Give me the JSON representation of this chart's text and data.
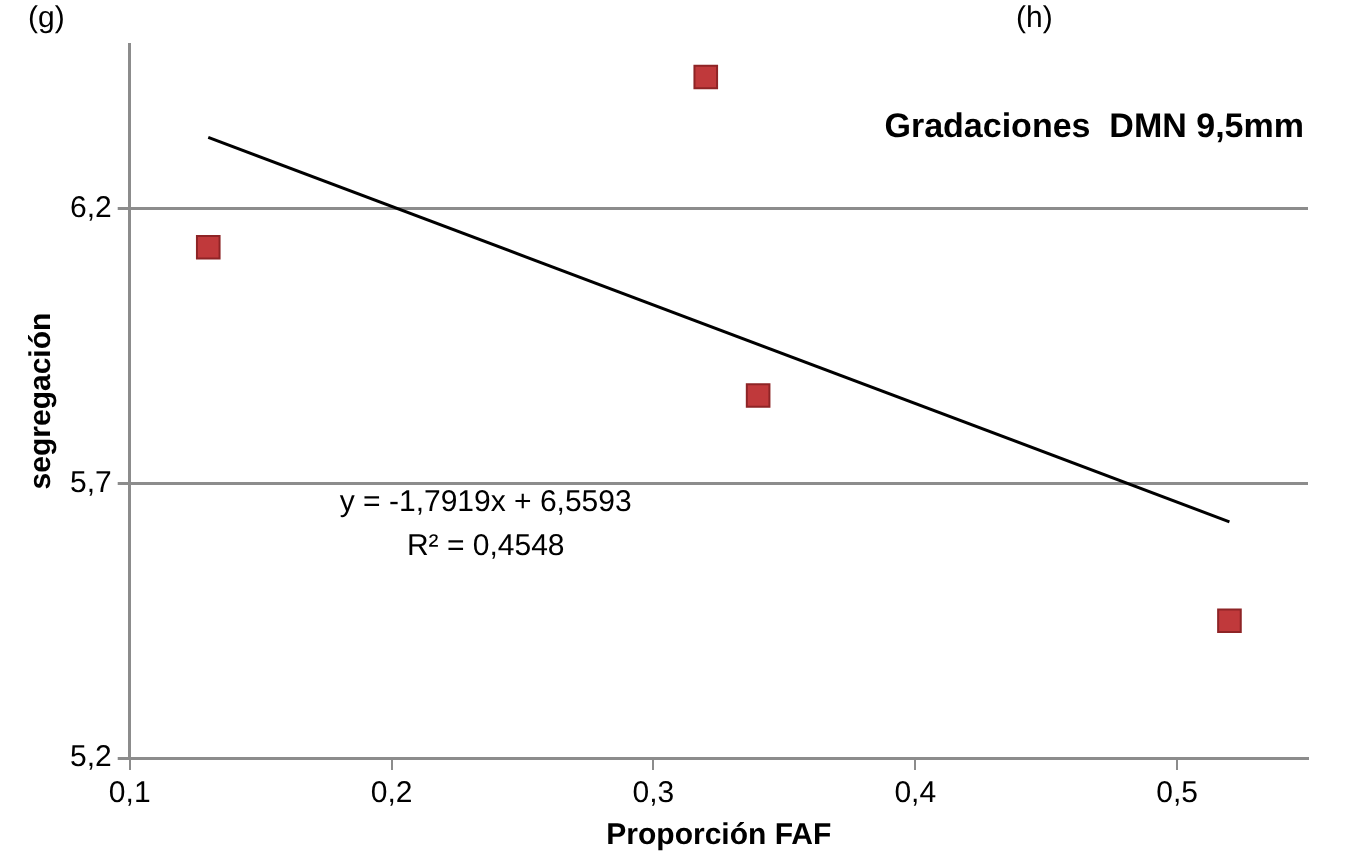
{
  "chart_data": {
    "type": "scatter",
    "title": "Gradaciones  DMN 9,5mm",
    "xlabel": "Proporción FAF",
    "ylabel": "segregación",
    "annotations": [
      "(g)",
      "(h)",
      "y = -1,7919x + 6,5593",
      "R² = 0,4548"
    ],
    "series": [
      {
        "color": "#c0393b",
        "x": [
          0.13,
          0.32,
          0.34,
          0.52
        ],
        "values": [
          6.13,
          6.44,
          5.86,
          5.45
        ],
        "marker": "square"
      },
      {
        "type": "line",
        "color": "#000000",
        "x": [
          0.13,
          0.52
        ],
        "values": [
          6.33,
          5.63
        ],
        "marker": "none"
      }
    ],
    "xlim": [
      0.1,
      0.55
    ],
    "xticks": [
      {
        "value": 0.1,
        "label": "0,1"
      },
      {
        "value": 0.2,
        "label": "0,2"
      },
      {
        "value": 0.3,
        "label": "0,3"
      },
      {
        "value": 0.4,
        "label": "0,4"
      },
      {
        "value": 0.5,
        "label": "0,5"
      }
    ],
    "ylim": [
      5.2,
      6.5
    ],
    "yticks": [
      {
        "value": 5.2,
        "label": "5,2"
      },
      {
        "value": 5.7,
        "label": "5,7"
      },
      {
        "value": 6.2,
        "label": "6,2"
      }
    ],
    "grid": "y",
    "legend": false
  }
}
